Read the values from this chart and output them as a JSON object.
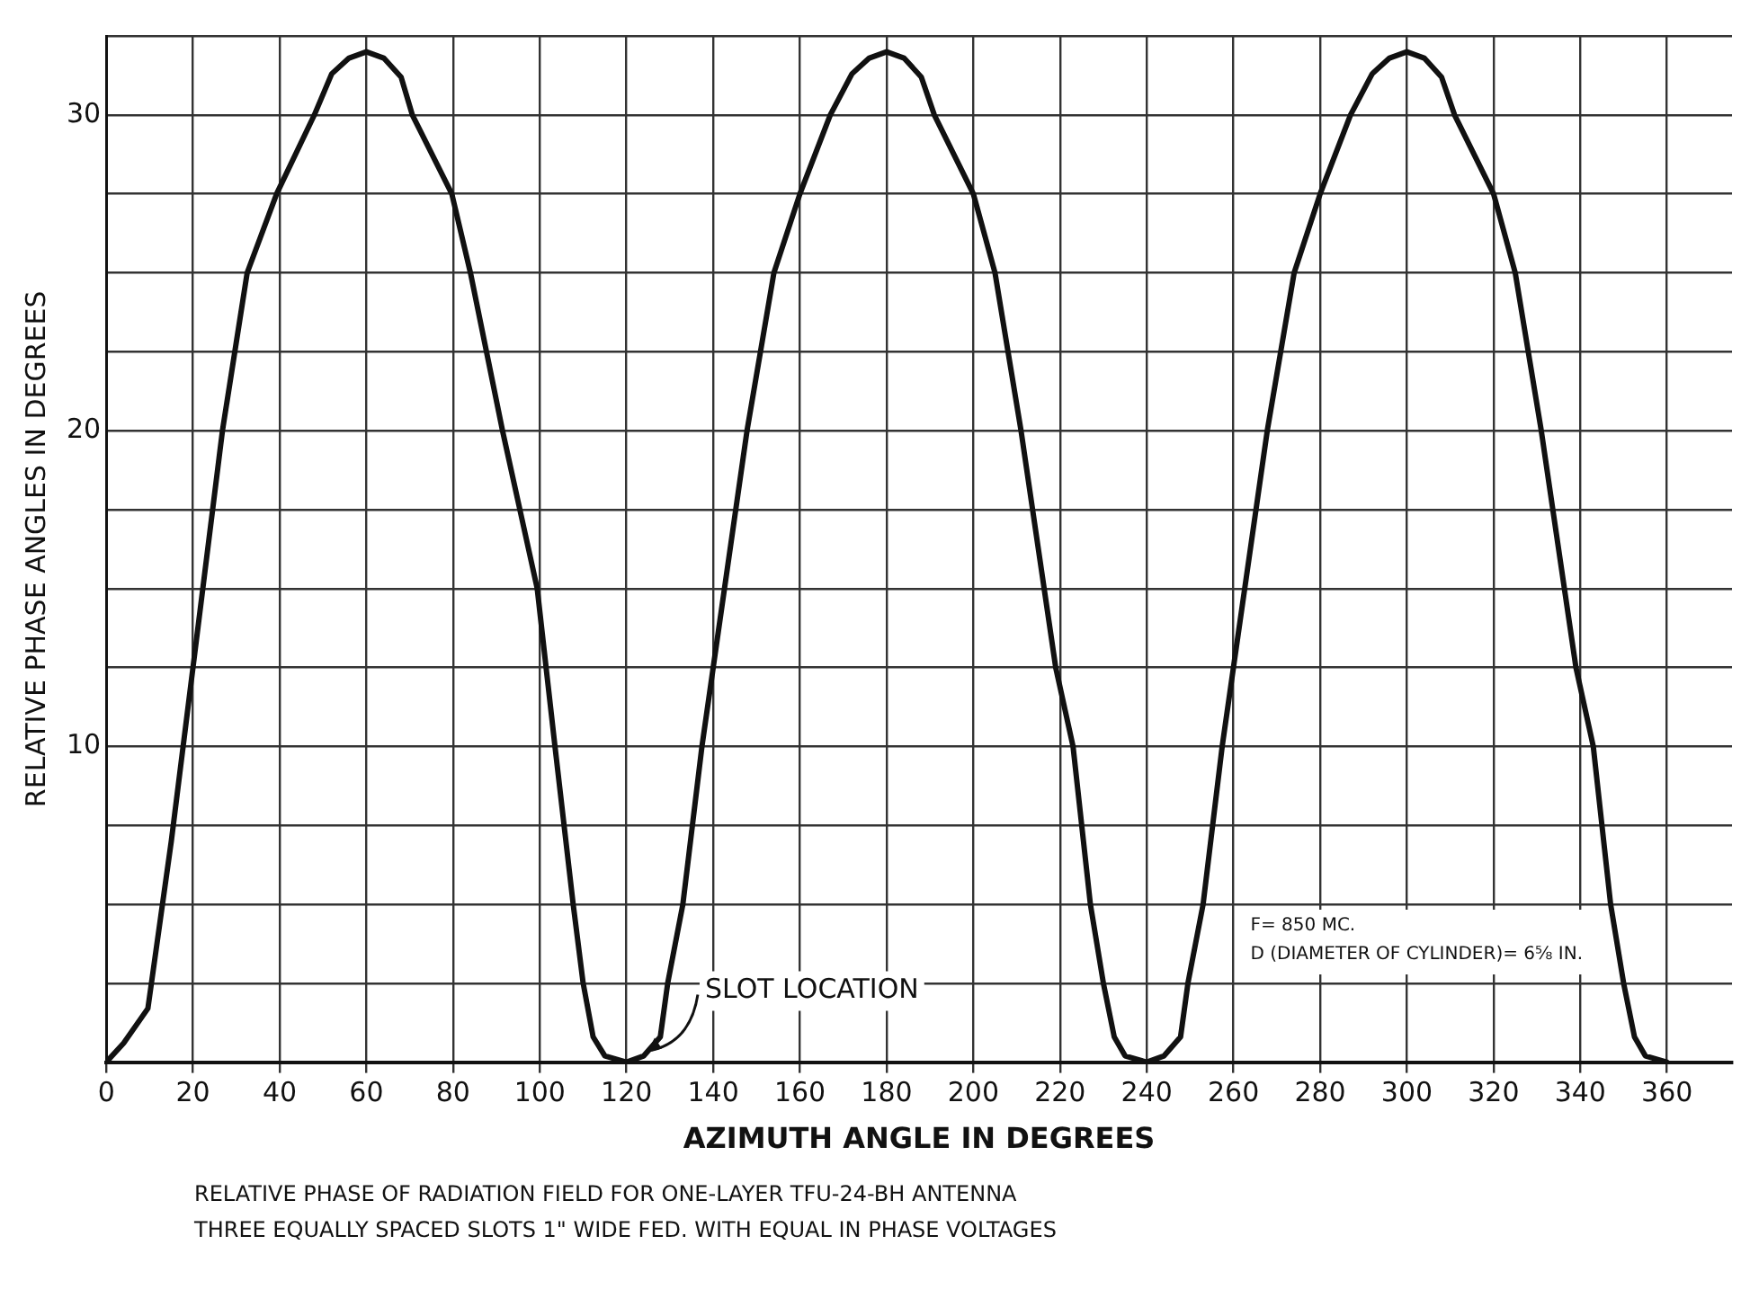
{
  "chart_data": {
    "type": "line",
    "xlabel": "AZIMUTH ANGLE IN DEGREES",
    "ylabel": "RELATIVE PHASE ANGLES IN DEGREES",
    "series": [
      {
        "color": "#111111",
        "x": [
          0,
          4,
          9.6,
          15,
          20,
          26.8,
          32.5,
          39.3,
          48,
          52,
          56,
          60,
          64,
          68,
          70.6,
          79.7,
          84,
          91.4,
          99.4,
          103.5,
          107.7,
          110,
          112.3,
          115,
          120,
          124,
          127.8,
          129.5,
          133,
          137.4,
          140,
          147.8,
          154,
          160,
          167,
          172,
          176,
          180,
          184,
          188,
          191,
          200,
          205,
          211,
          219,
          223,
          227,
          230,
          232.5,
          235,
          240,
          244,
          247.8,
          249.5,
          253,
          257.4,
          260,
          267.8,
          274,
          280,
          287,
          292,
          296,
          300,
          304,
          308,
          311,
          320,
          325,
          331,
          339,
          343,
          347,
          350,
          352.5,
          355,
          360
        ],
        "values": [
          0,
          0.6,
          1.7,
          7,
          12.5,
          20,
          25,
          27.5,
          30,
          31.3,
          31.8,
          32,
          31.8,
          31.2,
          30,
          27.5,
          25,
          20,
          15,
          10,
          5,
          2.5,
          0.8,
          0.2,
          0,
          0.2,
          0.8,
          2.5,
          5,
          10,
          12.5,
          20,
          25,
          27.5,
          30,
          31.3,
          31.8,
          32,
          31.8,
          31.2,
          30,
          27.5,
          25,
          20,
          12.5,
          10,
          5,
          2.5,
          0.8,
          0.2,
          0,
          0.2,
          0.8,
          2.5,
          5,
          10,
          12.5,
          20,
          25,
          27.5,
          30,
          31.3,
          31.8,
          32,
          31.8,
          31.2,
          30,
          27.5,
          25,
          20,
          12.5,
          10,
          5,
          2.5,
          0.8,
          0.2,
          0
        ]
      }
    ],
    "xlim": [
      0,
      375
    ],
    "xticks": [
      0,
      20,
      40,
      60,
      80,
      100,
      120,
      140,
      160,
      180,
      200,
      220,
      240,
      260,
      280,
      300,
      320,
      340,
      360
    ],
    "ylim": [
      0,
      32.5
    ],
    "yticks": [
      {
        "value": 0,
        "label": null
      },
      {
        "value": 2.5,
        "label": null
      },
      {
        "value": 5,
        "label": null
      },
      {
        "value": 7.5,
        "label": null
      },
      10,
      {
        "value": 12.5,
        "label": null
      },
      {
        "value": 15,
        "label": null
      },
      {
        "value": 17.5,
        "label": null
      },
      20,
      {
        "value": 22.5,
        "label": null
      },
      {
        "value": 25,
        "label": null
      },
      {
        "value": 27.5,
        "label": null
      },
      30,
      {
        "value": 32.5,
        "label": null
      }
    ],
    "grid": true,
    "legend": false,
    "marker": "none",
    "line_style": "solid",
    "annotations": [
      {
        "text": "SLOT LOCATION",
        "x": 124,
        "y": 0.2
      },
      "F= 850 MC.",
      "D (DIAMETER OF CYLINDER)= 6⅝ IN.",
      "RELATIVE PHASE OF RADIATION FIELD  FOR ONE-LAYER TFU-24-BH ANTENNA",
      "THREE EQUALLY SPACED  SLOTS 1\" WIDE FED. WITH EQUAL  IN PHASE VOLTAGES"
    ]
  }
}
